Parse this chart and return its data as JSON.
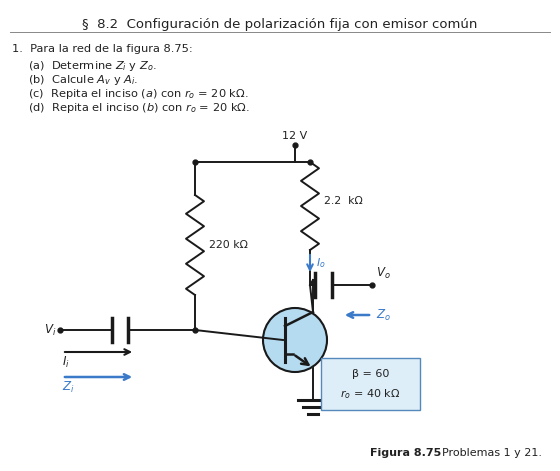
{
  "title": "§  8.2  Configuración de polarización fija con emisor común",
  "bg_color": "#ffffff",
  "text_color": "#222222",
  "circuit_color": "#1a1a1a",
  "blue_color": "#3a7ac8",
  "transistor_fill": "#add8f0",
  "fig_caption_bold": "Figura 8.75",
  "fig_caption_normal": "    Problemas 1 y 21."
}
